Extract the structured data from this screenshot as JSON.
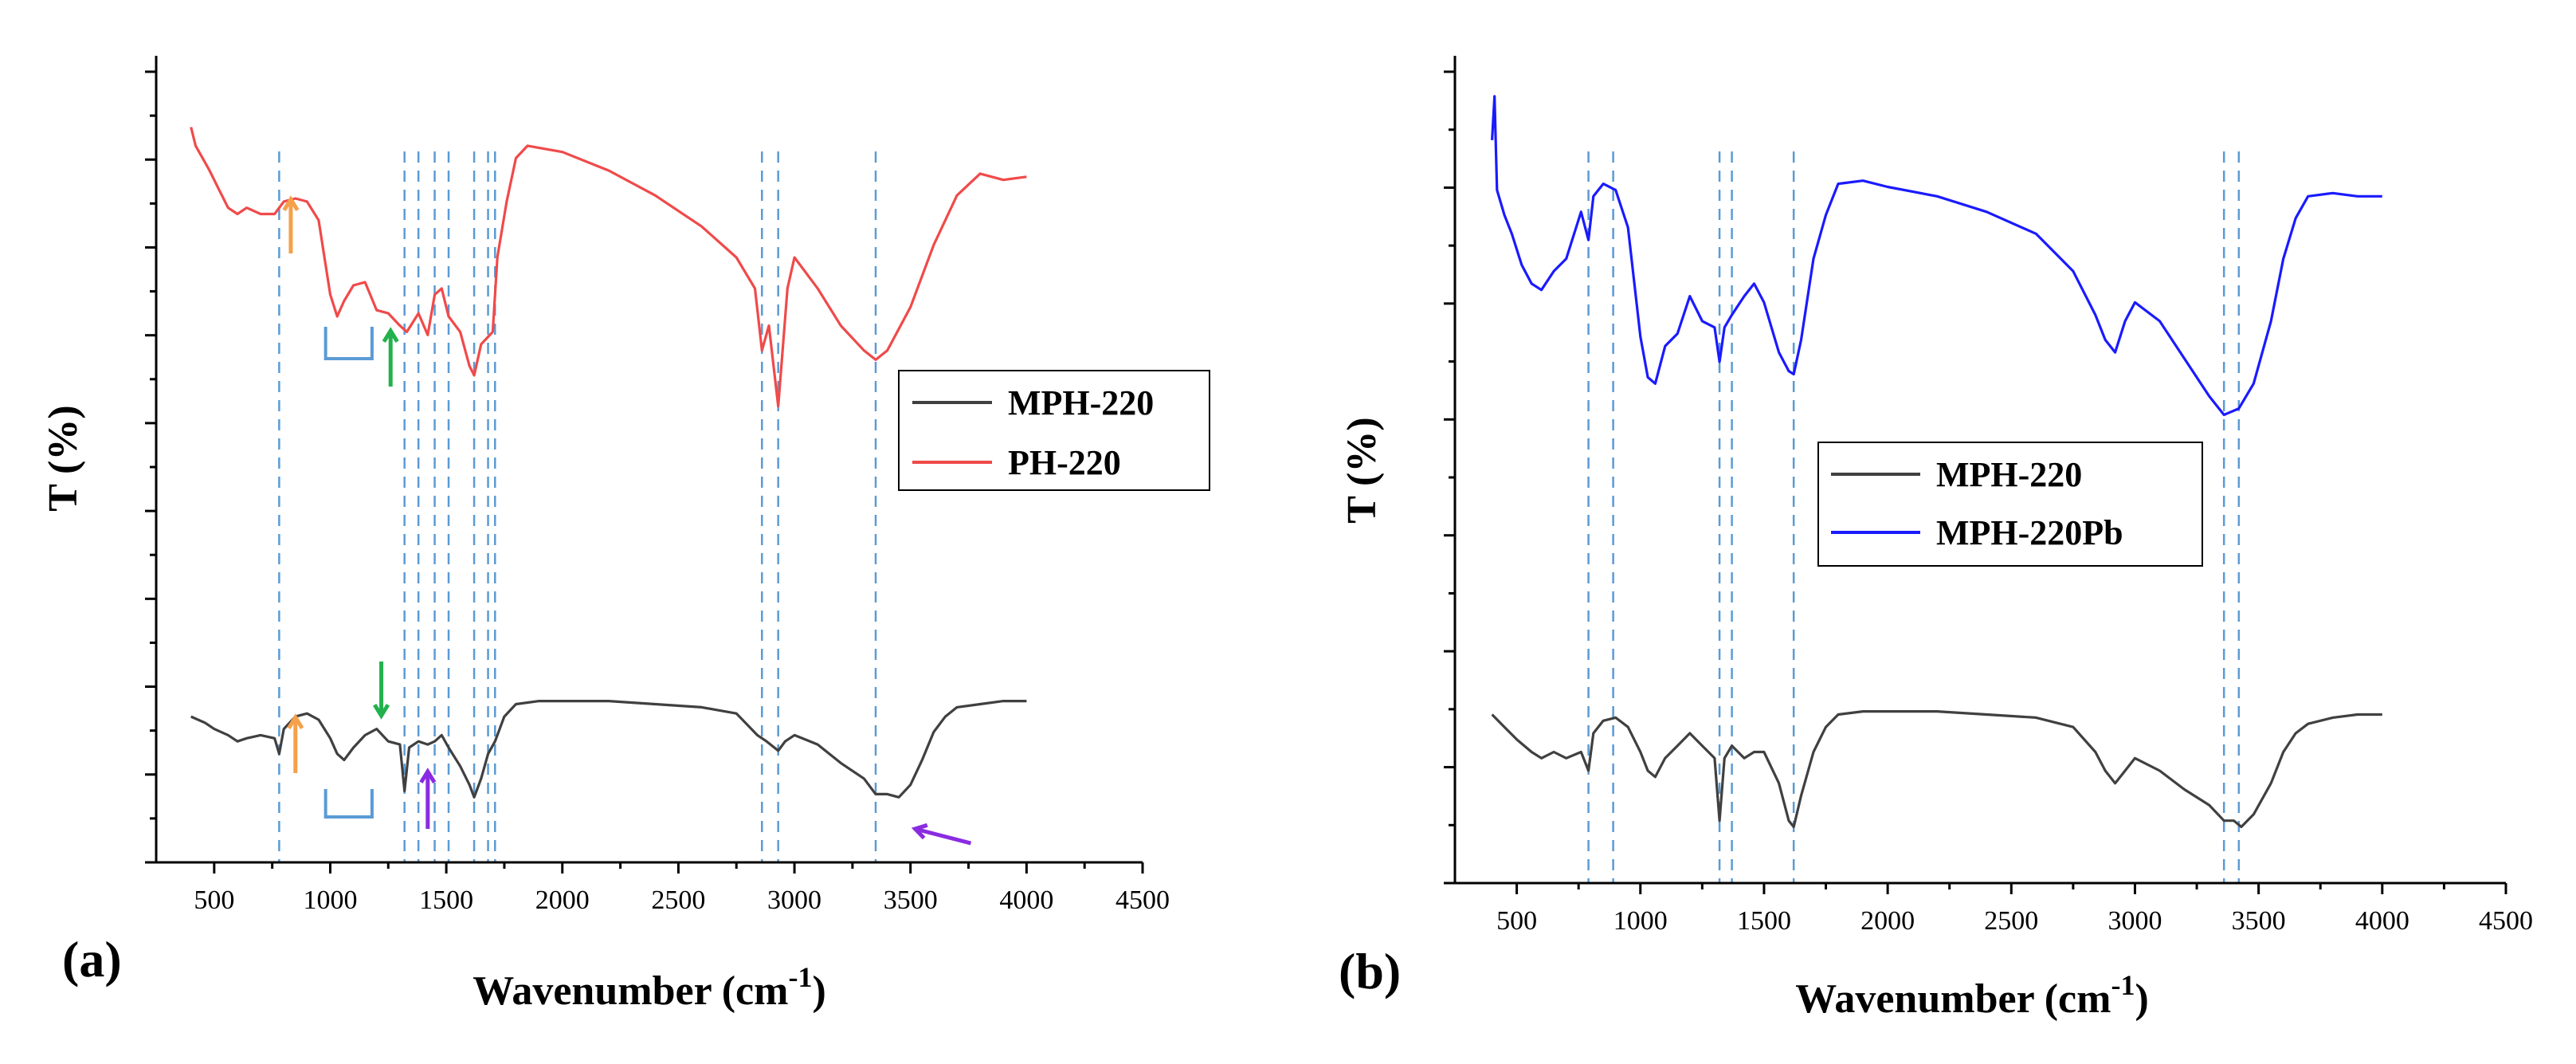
{
  "colors": {
    "black": "#404040",
    "red": "#f04a4a",
    "blue": "#1a1aff",
    "guide": "#5b9bd5",
    "orange": "#f5a04a",
    "green": "#22b14c",
    "purple": "#8a2be2",
    "bracket": "#5b9bd5"
  },
  "chart_data": [
    {
      "panel": "(a)",
      "type": "line",
      "xlabel": "Wavenumber (cm",
      "xlabel_sup": "-1",
      "xlabel_close": ")",
      "ylabel": "T (%)",
      "xlim": [
        250,
        4500
      ],
      "xticks": [
        "500",
        "1000",
        "1500",
        "2000",
        "2500",
        "3000",
        "3500",
        "4000",
        "4500"
      ],
      "y_axis_ticks_labeled": false,
      "legend": {
        "placement": "right",
        "entries": [
          "MPH-220",
          "PH-220"
        ]
      },
      "guide_lines_x": [
        780,
        1320,
        1380,
        1450,
        1510,
        1620,
        1680,
        1710,
        2860,
        2930,
        3350
      ],
      "series": [
        {
          "name": "MPH-220",
          "color": "#404040",
          "points": [
            [
              400,
              0.82
            ],
            [
              460,
              0.8
            ],
            [
              500,
              0.78
            ],
            [
              560,
              0.76
            ],
            [
              600,
              0.74
            ],
            [
              640,
              0.75
            ],
            [
              700,
              0.76
            ],
            [
              760,
              0.75
            ],
            [
              780,
              0.7
            ],
            [
              800,
              0.78
            ],
            [
              850,
              0.82
            ],
            [
              900,
              0.83
            ],
            [
              950,
              0.81
            ],
            [
              1000,
              0.75
            ],
            [
              1030,
              0.7
            ],
            [
              1060,
              0.68
            ],
            [
              1100,
              0.72
            ],
            [
              1150,
              0.76
            ],
            [
              1200,
              0.78
            ],
            [
              1250,
              0.74
            ],
            [
              1300,
              0.73
            ],
            [
              1320,
              0.58
            ],
            [
              1340,
              0.72
            ],
            [
              1380,
              0.74
            ],
            [
              1420,
              0.73
            ],
            [
              1450,
              0.74
            ],
            [
              1480,
              0.76
            ],
            [
              1510,
              0.72
            ],
            [
              1560,
              0.66
            ],
            [
              1600,
              0.6
            ],
            [
              1620,
              0.56
            ],
            [
              1650,
              0.62
            ],
            [
              1680,
              0.7
            ],
            [
              1710,
              0.74
            ],
            [
              1750,
              0.82
            ],
            [
              1800,
              0.86
            ],
            [
              1900,
              0.87
            ],
            [
              2000,
              0.87
            ],
            [
              2200,
              0.87
            ],
            [
              2400,
              0.86
            ],
            [
              2600,
              0.85
            ],
            [
              2750,
              0.83
            ],
            [
              2840,
              0.76
            ],
            [
              2880,
              0.74
            ],
            [
              2930,
              0.71
            ],
            [
              2960,
              0.74
            ],
            [
              3000,
              0.76
            ],
            [
              3100,
              0.73
            ],
            [
              3200,
              0.67
            ],
            [
              3300,
              0.62
            ],
            [
              3350,
              0.57
            ],
            [
              3400,
              0.57
            ],
            [
              3450,
              0.56
            ],
            [
              3500,
              0.6
            ],
            [
              3550,
              0.68
            ],
            [
              3600,
              0.77
            ],
            [
              3650,
              0.82
            ],
            [
              3700,
              0.85
            ],
            [
              3800,
              0.86
            ],
            [
              3900,
              0.87
            ],
            [
              4000,
              0.87
            ]
          ]
        },
        {
          "name": "PH-220",
          "color": "#f04a4a",
          "points": [
            [
              400,
              2.72
            ],
            [
              420,
              2.66
            ],
            [
              450,
              2.62
            ],
            [
              480,
              2.58
            ],
            [
              520,
              2.52
            ],
            [
              560,
              2.46
            ],
            [
              600,
              2.44
            ],
            [
              640,
              2.46
            ],
            [
              700,
              2.44
            ],
            [
              760,
              2.44
            ],
            [
              800,
              2.48
            ],
            [
              850,
              2.49
            ],
            [
              900,
              2.48
            ],
            [
              950,
              2.42
            ],
            [
              1000,
              2.18
            ],
            [
              1030,
              2.11
            ],
            [
              1060,
              2.16
            ],
            [
              1100,
              2.21
            ],
            [
              1150,
              2.22
            ],
            [
              1200,
              2.13
            ],
            [
              1250,
              2.12
            ],
            [
              1300,
              2.08
            ],
            [
              1330,
              2.06
            ],
            [
              1380,
              2.12
            ],
            [
              1420,
              2.05
            ],
            [
              1450,
              2.18
            ],
            [
              1480,
              2.2
            ],
            [
              1510,
              2.11
            ],
            [
              1560,
              2.06
            ],
            [
              1600,
              1.95
            ],
            [
              1620,
              1.92
            ],
            [
              1650,
              2.02
            ],
            [
              1700,
              2.06
            ],
            [
              1720,
              2.3
            ],
            [
              1760,
              2.48
            ],
            [
              1800,
              2.62
            ],
            [
              1850,
              2.66
            ],
            [
              2000,
              2.64
            ],
            [
              2200,
              2.58
            ],
            [
              2400,
              2.5
            ],
            [
              2600,
              2.4
            ],
            [
              2750,
              2.3
            ],
            [
              2830,
              2.2
            ],
            [
              2860,
              2.0
            ],
            [
              2890,
              2.08
            ],
            [
              2930,
              1.82
            ],
            [
              2970,
              2.2
            ],
            [
              3000,
              2.3
            ],
            [
              3100,
              2.2
            ],
            [
              3200,
              2.08
            ],
            [
              3300,
              2.0
            ],
            [
              3350,
              1.97
            ],
            [
              3400,
              2.0
            ],
            [
              3500,
              2.14
            ],
            [
              3600,
              2.34
            ],
            [
              3700,
              2.5
            ],
            [
              3800,
              2.57
            ],
            [
              3900,
              2.55
            ],
            [
              4000,
              2.56
            ]
          ]
        }
      ]
    },
    {
      "panel": "(b)",
      "type": "line",
      "xlabel": "Wavenumber (cm",
      "xlabel_sup": "-1",
      "xlabel_close": ")",
      "ylabel": "T (%)",
      "xlim": [
        250,
        4500
      ],
      "xticks": [
        "500",
        "1000",
        "1500",
        "2000",
        "2500",
        "3000",
        "3500",
        "4000",
        "4500"
      ],
      "y_axis_ticks_labeled": false,
      "legend": {
        "placement": "center-left",
        "entries": [
          "MPH-220",
          "MPH-220Pb"
        ]
      },
      "guide_lines_x": [
        790,
        890,
        1320,
        1370,
        1620,
        3360,
        3420
      ],
      "series": [
        {
          "name": "MPH-220",
          "color": "#404040",
          "points": [
            [
              400,
              0.84
            ],
            [
              450,
              0.8
            ],
            [
              500,
              0.76
            ],
            [
              560,
              0.72
            ],
            [
              600,
              0.7
            ],
            [
              650,
              0.72
            ],
            [
              700,
              0.7
            ],
            [
              760,
              0.72
            ],
            [
              790,
              0.66
            ],
            [
              810,
              0.78
            ],
            [
              850,
              0.82
            ],
            [
              900,
              0.83
            ],
            [
              950,
              0.8
            ],
            [
              1000,
              0.72
            ],
            [
              1030,
              0.66
            ],
            [
              1060,
              0.64
            ],
            [
              1100,
              0.7
            ],
            [
              1150,
              0.74
            ],
            [
              1200,
              0.78
            ],
            [
              1250,
              0.74
            ],
            [
              1300,
              0.7
            ],
            [
              1320,
              0.5
            ],
            [
              1340,
              0.7
            ],
            [
              1370,
              0.74
            ],
            [
              1420,
              0.7
            ],
            [
              1460,
              0.72
            ],
            [
              1500,
              0.72
            ],
            [
              1560,
              0.62
            ],
            [
              1600,
              0.5
            ],
            [
              1620,
              0.48
            ],
            [
              1650,
              0.58
            ],
            [
              1700,
              0.72
            ],
            [
              1750,
              0.8
            ],
            [
              1800,
              0.84
            ],
            [
              1900,
              0.85
            ],
            [
              2000,
              0.85
            ],
            [
              2200,
              0.85
            ],
            [
              2400,
              0.84
            ],
            [
              2600,
              0.83
            ],
            [
              2750,
              0.8
            ],
            [
              2840,
              0.72
            ],
            [
              2880,
              0.66
            ],
            [
              2920,
              0.62
            ],
            [
              2960,
              0.66
            ],
            [
              3000,
              0.7
            ],
            [
              3100,
              0.66
            ],
            [
              3200,
              0.6
            ],
            [
              3300,
              0.55
            ],
            [
              3360,
              0.5
            ],
            [
              3400,
              0.5
            ],
            [
              3430,
              0.48
            ],
            [
              3480,
              0.52
            ],
            [
              3550,
              0.62
            ],
            [
              3600,
              0.72
            ],
            [
              3650,
              0.78
            ],
            [
              3700,
              0.81
            ],
            [
              3800,
              0.83
            ],
            [
              3900,
              0.84
            ],
            [
              4000,
              0.84
            ]
          ]
        },
        {
          "name": "MPH-220Pb",
          "color": "#1a1aff",
          "points": [
            [
              400,
              2.68
            ],
            [
              410,
              2.82
            ],
            [
              420,
              2.52
            ],
            [
              450,
              2.44
            ],
            [
              480,
              2.38
            ],
            [
              520,
              2.28
            ],
            [
              560,
              2.22
            ],
            [
              600,
              2.2
            ],
            [
              650,
              2.26
            ],
            [
              700,
              2.3
            ],
            [
              760,
              2.45
            ],
            [
              790,
              2.36
            ],
            [
              810,
              2.5
            ],
            [
              850,
              2.54
            ],
            [
              900,
              2.52
            ],
            [
              950,
              2.4
            ],
            [
              1000,
              2.05
            ],
            [
              1030,
              1.92
            ],
            [
              1060,
              1.9
            ],
            [
              1100,
              2.02
            ],
            [
              1150,
              2.06
            ],
            [
              1200,
              2.18
            ],
            [
              1250,
              2.1
            ],
            [
              1300,
              2.08
            ],
            [
              1320,
              1.97
            ],
            [
              1340,
              2.08
            ],
            [
              1370,
              2.12
            ],
            [
              1420,
              2.18
            ],
            [
              1460,
              2.22
            ],
            [
              1500,
              2.16
            ],
            [
              1560,
              2.0
            ],
            [
              1600,
              1.94
            ],
            [
              1620,
              1.93
            ],
            [
              1650,
              2.04
            ],
            [
              1700,
              2.3
            ],
            [
              1750,
              2.44
            ],
            [
              1800,
              2.54
            ],
            [
              1900,
              2.55
            ],
            [
              2000,
              2.53
            ],
            [
              2200,
              2.5
            ],
            [
              2400,
              2.45
            ],
            [
              2600,
              2.38
            ],
            [
              2750,
              2.26
            ],
            [
              2840,
              2.12
            ],
            [
              2880,
              2.04
            ],
            [
              2920,
              2.0
            ],
            [
              2960,
              2.1
            ],
            [
              3000,
              2.16
            ],
            [
              3100,
              2.1
            ],
            [
              3200,
              1.98
            ],
            [
              3300,
              1.86
            ],
            [
              3360,
              1.8
            ],
            [
              3420,
              1.82
            ],
            [
              3480,
              1.9
            ],
            [
              3550,
              2.1
            ],
            [
              3600,
              2.3
            ],
            [
              3650,
              2.43
            ],
            [
              3700,
              2.5
            ],
            [
              3800,
              2.51
            ],
            [
              3900,
              2.5
            ],
            [
              4000,
              2.5
            ]
          ]
        }
      ]
    }
  ]
}
